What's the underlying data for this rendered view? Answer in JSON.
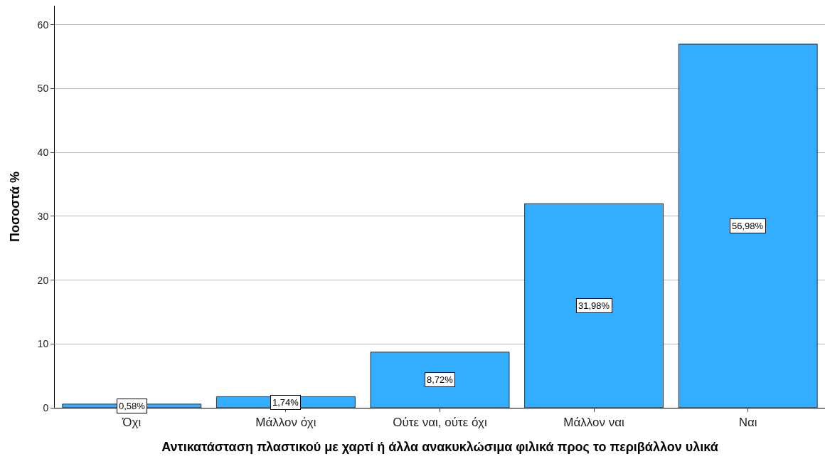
{
  "chart_data": {
    "type": "bar",
    "xlabel": "Αντικατάσταση πλαστικού με χαρτί ή άλλα ανακυκλώσιμα φιλικά προς το περιβάλλον υλικά",
    "ylabel": "Ποσοστά %",
    "categories": [
      "Όχι",
      "Μάλλον όχι",
      "Ούτε ναι, ούτε όχι",
      "Μάλλον ναι",
      "Ναι"
    ],
    "values": [
      0.58,
      1.74,
      8.72,
      31.98,
      56.98
    ],
    "value_labels": [
      "0,58%",
      "1,74%",
      "8,72%",
      "31,98%",
      "56,98%"
    ],
    "color": "#33adff",
    "ylim": [
      0,
      63
    ],
    "yticks": [
      0,
      10,
      20,
      30,
      40,
      50,
      60
    ],
    "grid": "y",
    "legend": false
  }
}
